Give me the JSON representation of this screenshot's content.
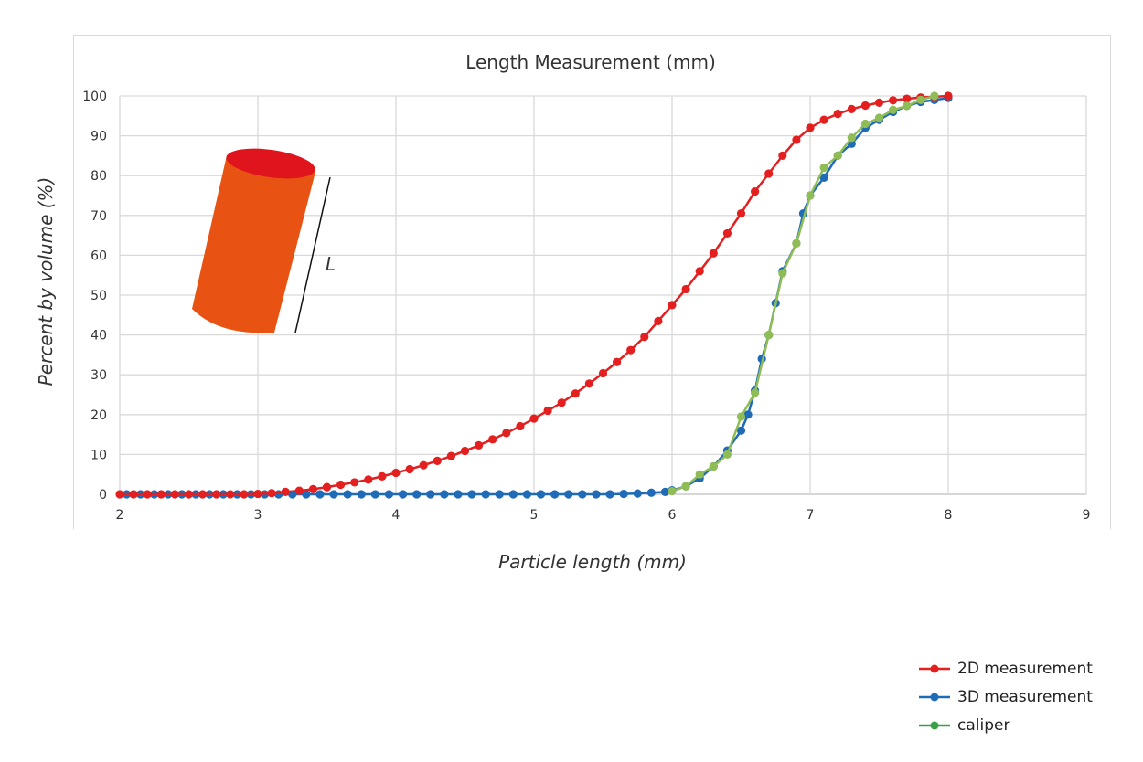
{
  "chart_data": {
    "type": "line",
    "title": "Length Measurement (mm)",
    "xlabel": "Particle length (mm)",
    "ylabel": "Percent by volume (%)",
    "xlim": [
      2,
      9
    ],
    "ylim": [
      0,
      100
    ],
    "xticks": [
      2,
      3,
      4,
      5,
      6,
      7,
      8,
      9
    ],
    "yticks": [
      0,
      10,
      20,
      30,
      40,
      50,
      60,
      70,
      80,
      90,
      100
    ],
    "grid": true,
    "legend_position": "bottom-right",
    "annotation": "L",
    "series": [
      {
        "name": "2D measurement",
        "color": "#e31f1f",
        "x": [
          2.0,
          2.1,
          2.2,
          2.3,
          2.4,
          2.5,
          2.6,
          2.7,
          2.8,
          2.9,
          3.0,
          3.1,
          3.2,
          3.3,
          3.4,
          3.5,
          3.6,
          3.7,
          3.8,
          3.9,
          4.0,
          4.1,
          4.2,
          4.3,
          4.4,
          4.5,
          4.6,
          4.7,
          4.8,
          4.9,
          5.0,
          5.1,
          5.2,
          5.3,
          5.4,
          5.5,
          5.6,
          5.7,
          5.8,
          5.9,
          6.0,
          6.1,
          6.2,
          6.3,
          6.4,
          6.5,
          6.6,
          6.7,
          6.8,
          6.9,
          7.0,
          7.1,
          7.2,
          7.3,
          7.4,
          7.5,
          7.6,
          7.7,
          7.8,
          7.9,
          8.0
        ],
        "y": [
          0,
          0,
          0,
          0,
          0,
          0,
          0,
          0,
          0,
          0,
          0.1,
          0.3,
          0.6,
          0.9,
          1.3,
          1.8,
          2.4,
          3,
          3.7,
          4.5,
          5.4,
          6.3,
          7.3,
          8.4,
          9.6,
          10.9,
          12.3,
          13.8,
          15.4,
          17.1,
          19,
          21,
          23,
          25.3,
          27.8,
          30.4,
          33.2,
          36.2,
          39.5,
          43.5,
          47.5,
          51.5,
          56,
          60.5,
          65.5,
          70.5,
          76,
          80.5,
          85,
          89,
          92,
          94,
          95.5,
          96.7,
          97.6,
          98.3,
          98.9,
          99.3,
          99.6,
          99.8,
          100
        ]
      },
      {
        "name": "3D measurement",
        "color": "#1f6bb8",
        "x": [
          2.05,
          2.15,
          2.25,
          2.35,
          2.45,
          2.55,
          2.65,
          2.75,
          2.85,
          2.95,
          3.05,
          3.15,
          3.25,
          3.35,
          3.45,
          3.55,
          3.65,
          3.75,
          3.85,
          3.95,
          4.05,
          4.15,
          4.25,
          4.35,
          4.45,
          4.55,
          4.65,
          4.75,
          4.85,
          4.95,
          5.05,
          5.15,
          5.25,
          5.35,
          5.45,
          5.55,
          5.65,
          5.75,
          5.85,
          5.95,
          6.0,
          6.1,
          6.2,
          6.3,
          6.4,
          6.5,
          6.55,
          6.6,
          6.65,
          6.7,
          6.75,
          6.8,
          6.9,
          6.95,
          7.0,
          7.1,
          7.2,
          7.3,
          7.4,
          7.5,
          7.6,
          7.7,
          7.8,
          7.9,
          8.0
        ],
        "y": [
          0,
          0,
          0,
          0,
          0,
          0,
          0,
          0,
          0,
          0,
          0,
          0,
          0,
          0,
          0,
          0,
          0,
          0,
          0,
          0,
          0,
          0,
          0,
          0,
          0,
          0,
          0,
          0,
          0,
          0,
          0,
          0,
          0,
          0,
          0,
          0,
          0.1,
          0.2,
          0.4,
          0.6,
          1,
          2,
          4,
          7,
          11,
          16,
          20,
          26,
          34,
          40,
          48,
          56,
          63,
          70.5,
          75,
          79.5,
          85,
          88,
          92,
          94,
          96,
          97.5,
          98.5,
          99,
          99.5
        ]
      },
      {
        "name": "caliper",
        "color": "#8fbc55",
        "x": [
          6.0,
          6.1,
          6.2,
          6.3,
          6.4,
          6.5,
          6.6,
          6.7,
          6.8,
          6.9,
          7.0,
          7.1,
          7.2,
          7.3,
          7.4,
          7.5,
          7.6,
          7.7,
          7.8,
          7.9
        ],
        "y": [
          0.8,
          2,
          5,
          7,
          10,
          19.5,
          25.5,
          40,
          55.5,
          63,
          75,
          82,
          85,
          89.5,
          93,
          94.5,
          96.5,
          97.5,
          99,
          100
        ]
      }
    ]
  }
}
